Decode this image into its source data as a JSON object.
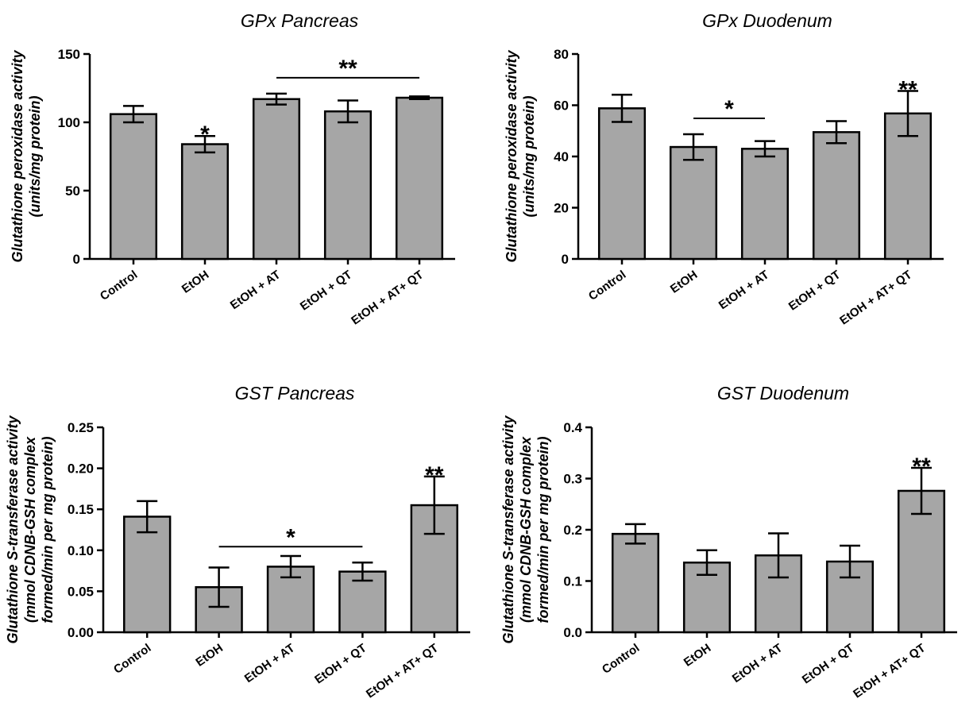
{
  "chart_data": [
    {
      "type": "bar",
      "title": "GPx Pancreas",
      "ylabel": [
        "Glutathione peroxidase activity",
        "(units/mg protein)"
      ],
      "categories": [
        "Control",
        "EtOH",
        "EtOH + AT",
        "EtOH + QT",
        "EtOH + AT+ QT"
      ],
      "values": [
        106,
        84,
        117,
        108,
        118
      ],
      "errors": [
        6,
        6,
        4,
        8,
        1
      ],
      "ylim": [
        0,
        150
      ],
      "yticks": [
        "0",
        "50",
        "100",
        "150"
      ],
      "ytick_values": [
        0,
        50,
        100,
        150
      ],
      "bar_color": "#a6a6a6",
      "annotations": [
        {
          "text": "*",
          "target": [
            1
          ],
          "bracket": false
        },
        {
          "text": "**",
          "target": [
            2,
            4
          ],
          "bracket": true
        }
      ]
    },
    {
      "type": "bar",
      "title": "GPx Duodenum",
      "ylabel": [
        "Glutathione peroxidase activity",
        "(units/mg protein)"
      ],
      "categories": [
        "Control",
        "EtOH",
        "EtOH + AT",
        "EtOH + QT",
        "EtOH + AT+ QT"
      ],
      "values": [
        58.8,
        43.7,
        43.0,
        49.5,
        56.8
      ],
      "errors": [
        5.3,
        5.0,
        3.0,
        4.3,
        8.8
      ],
      "ylim": [
        0,
        80
      ],
      "yticks": [
        "0",
        "20",
        "40",
        "60",
        "80"
      ],
      "ytick_values": [
        0,
        20,
        40,
        60,
        80
      ],
      "bar_color": "#a6a6a6",
      "annotations": [
        {
          "text": "*",
          "target": [
            1,
            2
          ],
          "bracket": true
        },
        {
          "text": "**",
          "target": [
            4
          ],
          "bracket": false
        }
      ]
    },
    {
      "type": "bar",
      "title": "GST Pancreas",
      "ylabel": [
        "Glutathione S-transferase activity",
        "(mmol CDNB-GSH complex",
        "formed/min per mg protein)"
      ],
      "categories": [
        "Control",
        "EtOH",
        "EtOH + AT",
        "EtOH + QT",
        "EtOH + AT+ QT"
      ],
      "values": [
        0.141,
        0.055,
        0.08,
        0.074,
        0.155
      ],
      "errors": [
        0.019,
        0.024,
        0.013,
        0.011,
        0.035
      ],
      "ylim": [
        0,
        0.25
      ],
      "yticks": [
        "0.00",
        "0.05",
        "0.10",
        "0.15",
        "0.20",
        "0.25"
      ],
      "ytick_values": [
        0,
        0.05,
        0.1,
        0.15,
        0.2,
        0.25
      ],
      "bar_color": "#a6a6a6",
      "annotations": [
        {
          "text": "*",
          "target": [
            1,
            3
          ],
          "bracket": true
        },
        {
          "text": "**",
          "target": [
            4
          ],
          "bracket": false
        }
      ]
    },
    {
      "type": "bar",
      "title": "GST Duodenum",
      "ylabel": [
        "Glutathione S-transferase activity",
        "(mmol CDNB-GSH complex",
        "formed/min per mg protein)"
      ],
      "categories": [
        "Control",
        "EtOH",
        "EtOH + AT",
        "EtOH + QT",
        "EtOH + AT+ QT"
      ],
      "values": [
        0.192,
        0.136,
        0.15,
        0.138,
        0.276
      ],
      "errors": [
        0.019,
        0.024,
        0.043,
        0.031,
        0.045
      ],
      "ylim": [
        0,
        0.4
      ],
      "yticks": [
        "0.0",
        "0.1",
        "0.2",
        "0.3",
        "0.4"
      ],
      "ytick_values": [
        0,
        0.1,
        0.2,
        0.3,
        0.4
      ],
      "bar_color": "#a6a6a6",
      "annotations": [
        {
          "text": "**",
          "target": [
            4
          ],
          "bracket": false
        }
      ]
    }
  ]
}
